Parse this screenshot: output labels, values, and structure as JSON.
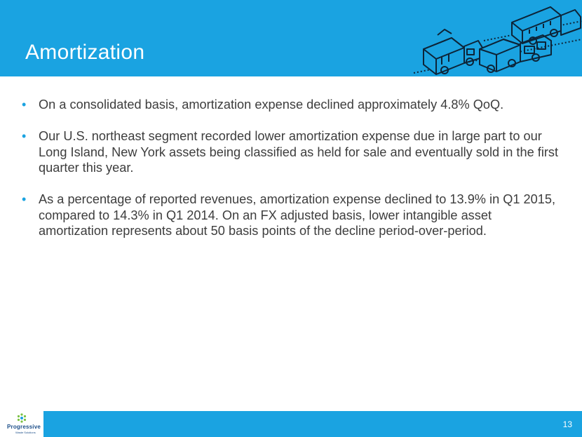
{
  "slide": {
    "title": "Amortization",
    "page_number": "13"
  },
  "bullets": [
    "On a consolidated basis, amortization expense declined approximately 4.8% QoQ.",
    "Our U.S. northeast segment recorded lower amortization expense due in large part to our Long Island, New York assets being classified as held for sale and eventually sold in the first quarter this year.",
    "As a percentage of reported revenues, amortization expense declined to 13.9% in Q1 2015, compared to 14.3% in Q1 2014.  On an FX adjusted basis, lower intangible asset amortization represents about 50 basis points of the decline period-over-period."
  ],
  "bullet_marker": "•",
  "logo": {
    "name": "Progressive",
    "tagline": "Waste Solutions"
  },
  "colors": {
    "accent": "#1aa3e1",
    "text": "#3d3d3d",
    "logo": "#1d4f8a"
  },
  "icons": [
    "garbage-truck-icon",
    "logo-mark-icon"
  ]
}
